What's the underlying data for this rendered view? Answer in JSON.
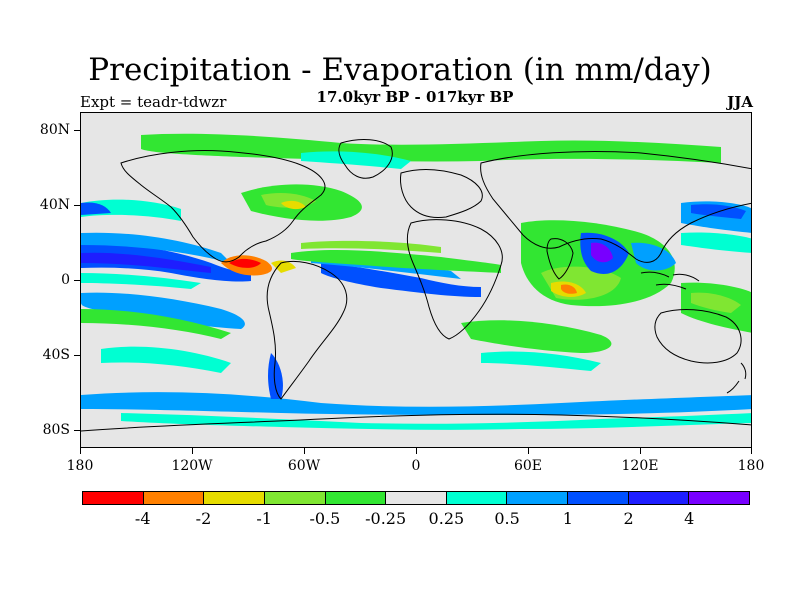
{
  "title": "Precipitation - Evaporation (in mm/day)",
  "subtitle": "17.0kyr BP - 017kyr BP",
  "expt_label": "Expt = teadr-tdwzr",
  "season": "JJA",
  "lat_labels": [
    "80N",
    "40N",
    "0",
    "40S",
    "80S"
  ],
  "lon_labels": [
    "180",
    "120W",
    "60W",
    "0",
    "60E",
    "120E",
    "180"
  ],
  "colorbar": {
    "colors": [
      "#ff0000",
      "#ff8000",
      "#e6dc00",
      "#80e632",
      "#32e632",
      "#e6e6e6",
      "#00ffd2",
      "#00a0ff",
      "#0050ff",
      "#1e1eff",
      "#7800ff"
    ],
    "labels": [
      "-4",
      "-2",
      "-1",
      "-0.5",
      "-0.25",
      "0.25",
      "0.5",
      "1",
      "2",
      "4"
    ]
  },
  "background_color": "#e6e6e6"
}
